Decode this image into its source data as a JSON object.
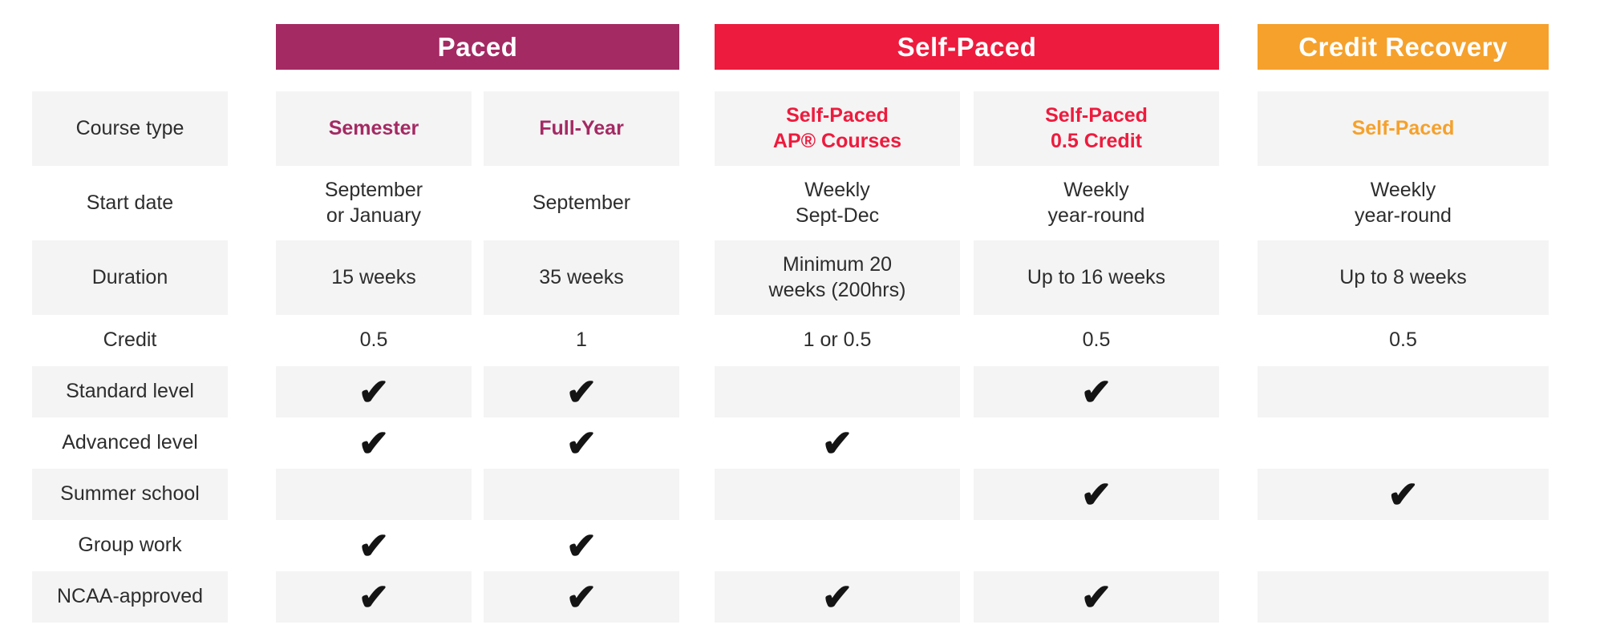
{
  "palette": {
    "paced_purple": "#A42A63",
    "self_paced_red": "#ED1B3D",
    "credit_recovery_orange": "#F5A12C",
    "shaded_cell_gray": "#F4F4F4",
    "text_dark": "#2D2D2D",
    "banner_text": "#FFFFFF"
  },
  "header": {
    "groups": [
      {
        "label": "Paced",
        "color": "#A42A63"
      },
      {
        "label": "Self-Paced",
        "color": "#ED1B3D"
      },
      {
        "label": "Credit Recovery",
        "color": "#F5A12C"
      }
    ]
  },
  "row_labels": [
    "Course type",
    "Start date",
    "Duration",
    "Credit",
    "Standard level",
    "Advanced level",
    "Summer school",
    "Group work",
    "NCAA-approved"
  ],
  "check_glyph": "✔",
  "columns": [
    {
      "group": "Paced",
      "header": "Semester",
      "start_date": "September\nor January",
      "duration": "15 weeks",
      "credit": "0.5",
      "checks": {
        "standard_level": "✔",
        "advanced_level": "✔",
        "summer_school": "",
        "group_work": "✔",
        "ncaa_approved": "✔"
      }
    },
    {
      "group": "Paced",
      "header": "Full-Year",
      "start_date": "September",
      "duration": "35 weeks",
      "credit": "1",
      "checks": {
        "standard_level": "✔",
        "advanced_level": "✔",
        "summer_school": "",
        "group_work": "✔",
        "ncaa_approved": "✔"
      }
    },
    {
      "group": "Self-Paced",
      "header": "Self-Paced\nAP® Courses",
      "start_date": "Weekly\nSept-Dec",
      "duration": "Minimum 20\nweeks (200hrs)",
      "credit": "1 or 0.5",
      "checks": {
        "standard_level": "",
        "advanced_level": "✔",
        "summer_school": "",
        "group_work": "",
        "ncaa_approved": "✔"
      }
    },
    {
      "group": "Self-Paced",
      "header": "Self-Paced\n0.5 Credit",
      "start_date": "Weekly\nyear-round",
      "duration": "Up to 16 weeks",
      "credit": "0.5",
      "checks": {
        "standard_level": "✔",
        "advanced_level": "",
        "summer_school": "✔",
        "group_work": "",
        "ncaa_approved": "✔"
      }
    },
    {
      "group": "Credit Recovery",
      "header": "Self-Paced",
      "start_date": "Weekly\nyear-round",
      "duration": "Up to 8 weeks",
      "credit": "0.5",
      "checks": {
        "standard_level": "",
        "advanced_level": "",
        "summer_school": "✔",
        "group_work": "",
        "ncaa_approved": ""
      }
    }
  ],
  "chart_data": {
    "type": "table",
    "title": "",
    "column_groups": [
      {
        "label": "Paced",
        "columns": [
          "Semester",
          "Full-Year"
        ]
      },
      {
        "label": "Self-Paced",
        "columns": [
          "Self-Paced AP® Courses",
          "Self-Paced 0.5 Credit"
        ]
      },
      {
        "label": "Credit Recovery",
        "columns": [
          "Self-Paced"
        ]
      }
    ],
    "row_labels": [
      "Course type",
      "Start date",
      "Duration",
      "Credit",
      "Standard level",
      "Advanced level",
      "Summer school",
      "Group work",
      "NCAA-approved"
    ],
    "rows": [
      [
        "Semester",
        "Full-Year",
        "Self-Paced AP® Courses",
        "Self-Paced 0.5 Credit",
        "Self-Paced"
      ],
      [
        "September or January",
        "September",
        "Weekly Sept-Dec",
        "Weekly year-round",
        "Weekly year-round"
      ],
      [
        "15 weeks",
        "35 weeks",
        "Minimum 20 weeks (200hrs)",
        "Up to 16 weeks",
        "Up to 8 weeks"
      ],
      [
        "0.5",
        "1",
        "1 or 0.5",
        "0.5",
        "0.5"
      ],
      [
        true,
        true,
        false,
        true,
        false
      ],
      [
        true,
        true,
        true,
        false,
        false
      ],
      [
        false,
        false,
        false,
        true,
        true
      ],
      [
        true,
        true,
        false,
        false,
        false
      ],
      [
        true,
        true,
        true,
        true,
        false
      ]
    ]
  }
}
